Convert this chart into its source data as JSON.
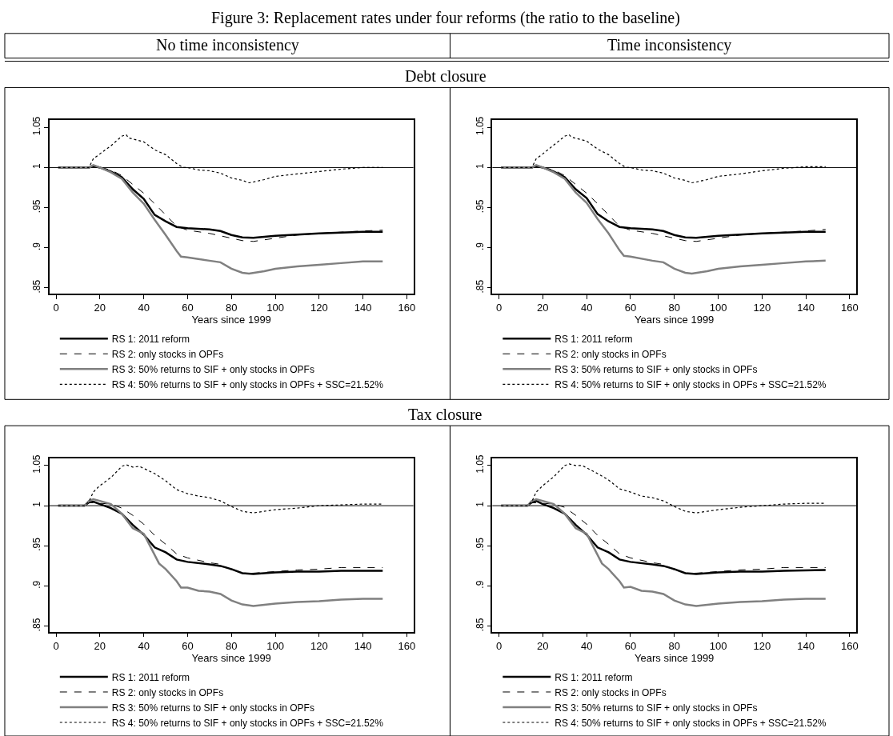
{
  "chart_data": [
    {
      "type": "line",
      "title": "Figure 3: Replacement rates under four reforms (the ratio to the baseline)",
      "subtitle": "No time inconsistency",
      "annotations": [
        "Debt closure"
      ],
      "xlabel": "Years since 1999",
      "xlim": [
        -3,
        163
      ],
      "xticks": [
        0,
        20,
        40,
        60,
        80,
        100,
        120,
        140,
        160
      ],
      "ylim": [
        0.843,
        1.059
      ],
      "yticks": [
        {
          "value": 0.85,
          "label": ".85"
        },
        {
          "value": 0.9,
          "label": ".9"
        },
        {
          "value": 0.95,
          "label": ".95"
        },
        1,
        1.05
      ],
      "grid": false,
      "legend": "bottom",
      "marker": "none",
      "ref_lines": [
        {
          "axis": "y",
          "value": 1,
          "color": "#000000"
        }
      ],
      "series": [
        {
          "name": "RS 1: 2011 reform",
          "color": "#000000",
          "line_style": "solid",
          "x": [
            1,
            15,
            17,
            20,
            25,
            30,
            35,
            40,
            45,
            50,
            55,
            60,
            70,
            75,
            80,
            85,
            90,
            100,
            110,
            120,
            140,
            149
          ],
          "values": [
            1.0,
            1.0,
            1.002,
            1.0,
            0.995,
            0.988,
            0.973,
            0.961,
            0.941,
            0.933,
            0.926,
            0.9245,
            0.923,
            0.921,
            0.916,
            0.913,
            0.9125,
            0.915,
            0.9165,
            0.918,
            0.92,
            0.92
          ]
        },
        {
          "name": "RS 2: only stocks in OPFs",
          "color": "#000000",
          "line_style": "dashed",
          "x": [
            1,
            15,
            17,
            25,
            30,
            35,
            40,
            45,
            50,
            55,
            60,
            70,
            80,
            85,
            90,
            100,
            110,
            120,
            140,
            149
          ],
          "values": [
            1.0,
            1.0,
            1.002,
            0.997,
            0.99,
            0.979,
            0.968,
            0.955,
            0.941,
            0.927,
            0.922,
            0.918,
            0.912,
            0.909,
            0.908,
            0.912,
            0.916,
            0.918,
            0.921,
            0.922
          ]
        },
        {
          "name": "RS 3: 50% returns to SIF + only stocks in OPFs",
          "color": "#808080",
          "line_style": "solid",
          "x": [
            1,
            15,
            17,
            20,
            25,
            30,
            35,
            40,
            45,
            50,
            55,
            57,
            60,
            70,
            75,
            80,
            85,
            88,
            95,
            100,
            110,
            120,
            130,
            140,
            149
          ],
          "values": [
            1.0,
            1.0,
            1.003,
            1.0,
            0.994,
            0.986,
            0.969,
            0.955,
            0.935,
            0.916,
            0.896,
            0.889,
            0.888,
            0.884,
            0.882,
            0.874,
            0.869,
            0.868,
            0.871,
            0.874,
            0.877,
            0.879,
            0.881,
            0.883,
            0.883
          ]
        },
        {
          "name": "RS 4: 50% returns to SIF + only stocks in OPFs + SSC=21.52%",
          "color": "#000000",
          "line_style": "dotted",
          "x": [
            1,
            15,
            17,
            20,
            25,
            30,
            32,
            33,
            40,
            45,
            50,
            55,
            58,
            60,
            65,
            70,
            75,
            80,
            85,
            88,
            90,
            95,
            100,
            110,
            120,
            130,
            140,
            149
          ],
          "values": [
            1.0,
            1.0,
            1.011,
            1.017,
            1.027,
            1.039,
            1.041,
            1.037,
            1.032,
            1.022,
            1.016,
            1.005,
            1.0,
            1.0,
            0.997,
            0.996,
            0.993,
            0.987,
            0.984,
            0.981,
            0.982,
            0.985,
            0.989,
            0.992,
            0.995,
            0.998,
            1.0,
            1.0
          ]
        }
      ]
    },
    {
      "type": "line",
      "subtitle": "Time inconsistency",
      "xlabel": "Years since 1999",
      "xlim": [
        -3,
        163
      ],
      "xticks": [
        0,
        20,
        40,
        60,
        80,
        100,
        120,
        140,
        160
      ],
      "ylim": [
        0.843,
        1.059
      ],
      "yticks": [
        {
          "value": 0.85,
          "label": ".85"
        },
        {
          "value": 0.9,
          "label": ".9"
        },
        {
          "value": 0.95,
          "label": ".95"
        },
        1,
        1.05
      ],
      "grid": false,
      "legend": "bottom",
      "marker": "none",
      "ref_lines": [
        {
          "axis": "y",
          "value": 1,
          "color": "#000000"
        }
      ],
      "series": [
        {
          "name": "RS 1: 2011 reform",
          "color": "#000000",
          "line_style": "solid",
          "x": [
            1,
            15,
            17,
            20,
            25,
            30,
            35,
            40,
            45,
            50,
            55,
            60,
            70,
            75,
            80,
            85,
            90,
            100,
            110,
            120,
            140,
            149
          ],
          "values": [
            1.0,
            1.0,
            1.002,
            1.0,
            0.995,
            0.988,
            0.973,
            0.962,
            0.942,
            0.933,
            0.926,
            0.9245,
            0.923,
            0.921,
            0.916,
            0.913,
            0.9125,
            0.915,
            0.9165,
            0.918,
            0.92,
            0.92
          ]
        },
        {
          "name": "RS 2: only stocks in OPFs",
          "color": "#000000",
          "line_style": "dashed",
          "x": [
            1,
            15,
            17,
            25,
            30,
            35,
            40,
            45,
            50,
            55,
            60,
            70,
            80,
            85,
            90,
            100,
            110,
            120,
            140,
            149
          ],
          "values": [
            1.0,
            1.0,
            1.002,
            0.997,
            0.99,
            0.979,
            0.968,
            0.955,
            0.941,
            0.927,
            0.922,
            0.918,
            0.912,
            0.909,
            0.908,
            0.912,
            0.916,
            0.918,
            0.921,
            0.923
          ]
        },
        {
          "name": "RS 3: 50% returns to SIF + only stocks in OPFs",
          "color": "#808080",
          "line_style": "solid",
          "x": [
            1,
            15,
            17,
            20,
            25,
            30,
            35,
            40,
            45,
            50,
            55,
            57,
            60,
            70,
            75,
            80,
            85,
            88,
            95,
            100,
            110,
            120,
            130,
            140,
            149
          ],
          "values": [
            1.0,
            1.0,
            1.003,
            1.0,
            0.994,
            0.986,
            0.969,
            0.956,
            0.936,
            0.918,
            0.897,
            0.89,
            0.889,
            0.884,
            0.882,
            0.874,
            0.869,
            0.868,
            0.871,
            0.874,
            0.877,
            0.879,
            0.881,
            0.883,
            0.884
          ]
        },
        {
          "name": "RS 4: 50% returns to SIF + only stocks in OPFs + SSC=21.52%",
          "color": "#000000",
          "line_style": "dotted",
          "x": [
            1,
            15,
            17,
            20,
            25,
            30,
            32,
            33,
            40,
            45,
            50,
            55,
            58,
            60,
            65,
            70,
            75,
            80,
            85,
            88,
            90,
            95,
            100,
            110,
            120,
            130,
            140,
            149
          ],
          "values": [
            1.0,
            1.0,
            1.011,
            1.017,
            1.028,
            1.039,
            1.041,
            1.038,
            1.033,
            1.023,
            1.016,
            1.005,
            1.0,
            1.0,
            0.997,
            0.996,
            0.993,
            0.987,
            0.984,
            0.981,
            0.982,
            0.985,
            0.989,
            0.992,
            0.996,
            0.999,
            1.001,
            1.001
          ]
        }
      ]
    },
    {
      "type": "line",
      "annotations": [
        "Tax closure"
      ],
      "xlabel": "Years since 1999",
      "xlim": [
        -3,
        163
      ],
      "xticks": [
        0,
        20,
        40,
        60,
        80,
        100,
        120,
        140,
        160
      ],
      "ylim": [
        0.843,
        1.059
      ],
      "yticks": [
        {
          "value": 0.85,
          "label": ".85"
        },
        {
          "value": 0.9,
          "label": ".9"
        },
        {
          "value": 0.95,
          "label": ".95"
        },
        1,
        1.05
      ],
      "grid": false,
      "legend": "bottom",
      "marker": "none",
      "ref_lines": [
        {
          "axis": "y",
          "value": 1,
          "color": "#000000"
        }
      ],
      "series": [
        {
          "name": "RS 1: 2011 reform",
          "color": "#000000",
          "line_style": "solid",
          "x": [
            1,
            13,
            15,
            17,
            20,
            25,
            30,
            35,
            40,
            45,
            50,
            55,
            60,
            70,
            75,
            80,
            85,
            90,
            100,
            110,
            120,
            130,
            149
          ],
          "values": [
            1.0,
            1.0,
            1.004,
            1.005,
            1.002,
            0.997,
            0.99,
            0.976,
            0.964,
            0.948,
            0.942,
            0.933,
            0.93,
            0.927,
            0.925,
            0.921,
            0.916,
            0.915,
            0.917,
            0.918,
            0.918,
            0.919,
            0.919
          ]
        },
        {
          "name": "RS 2: only stocks in OPFs",
          "color": "#000000",
          "line_style": "dashed",
          "x": [
            1,
            13,
            15,
            20,
            25,
            30,
            35,
            40,
            45,
            50,
            55,
            60,
            70,
            75,
            80,
            85,
            90,
            100,
            110,
            120,
            130,
            149
          ],
          "values": [
            1.0,
            1.0,
            1.004,
            1.003,
            1.002,
            0.997,
            0.988,
            0.977,
            0.963,
            0.952,
            0.94,
            0.935,
            0.929,
            0.927,
            0.92,
            0.916,
            0.916,
            0.918,
            0.92,
            0.921,
            0.923,
            0.923
          ]
        },
        {
          "name": "RS 3: 50% returns to SIF + only stocks in OPFs",
          "color": "#808080",
          "line_style": "solid",
          "x": [
            1,
            13,
            15,
            17,
            20,
            25,
            30,
            35,
            40,
            47,
            50,
            55,
            57,
            60,
            65,
            70,
            75,
            80,
            85,
            90,
            100,
            110,
            120,
            130,
            140,
            149
          ],
          "values": [
            1.0,
            1.0,
            1.006,
            1.008,
            1.006,
            1.002,
            0.99,
            0.972,
            0.965,
            0.928,
            0.921,
            0.906,
            0.898,
            0.898,
            0.894,
            0.893,
            0.89,
            0.882,
            0.877,
            0.875,
            0.878,
            0.88,
            0.881,
            0.883,
            0.884,
            0.884
          ]
        },
        {
          "name": "RS 4: 50% returns to SIF + only stocks in OPFs + SSC=21.52%",
          "color": "#000000",
          "line_style": "dotted",
          "x": [
            1,
            13,
            15,
            17,
            20,
            25,
            30,
            32,
            35,
            38,
            45,
            50,
            55,
            60,
            65,
            70,
            75,
            80,
            85,
            90,
            100,
            110,
            120,
            130,
            140,
            149
          ],
          "values": [
            1.0,
            1.0,
            1.005,
            1.017,
            1.025,
            1.035,
            1.049,
            1.051,
            1.048,
            1.049,
            1.04,
            1.031,
            1.02,
            1.015,
            1.012,
            1.01,
            1.006,
            0.999,
            0.993,
            0.991,
            0.995,
            0.997,
            1.0,
            1.001,
            1.002,
            1.002
          ]
        }
      ]
    },
    {
      "type": "line",
      "xlabel": "Years since 1999",
      "xlim": [
        -3,
        163
      ],
      "xticks": [
        0,
        20,
        40,
        60,
        80,
        100,
        120,
        140,
        160
      ],
      "ylim": [
        0.843,
        1.059
      ],
      "yticks": [
        {
          "value": 0.85,
          "label": ".85"
        },
        {
          "value": 0.9,
          "label": ".9"
        },
        {
          "value": 0.95,
          "label": ".95"
        },
        1,
        1.05
      ],
      "grid": false,
      "legend": "bottom",
      "marker": "none",
      "ref_lines": [
        {
          "axis": "y",
          "value": 1,
          "color": "#000000"
        }
      ],
      "series": [
        {
          "name": "RS 1: 2011 reform",
          "color": "#000000",
          "line_style": "solid",
          "x": [
            1,
            13,
            15,
            17,
            20,
            25,
            30,
            35,
            40,
            45,
            50,
            55,
            60,
            70,
            75,
            80,
            85,
            90,
            100,
            110,
            120,
            130,
            149
          ],
          "values": [
            1.0,
            1.0,
            1.004,
            1.006,
            1.002,
            0.997,
            0.99,
            0.976,
            0.964,
            0.948,
            0.942,
            0.933,
            0.93,
            0.927,
            0.925,
            0.921,
            0.916,
            0.915,
            0.917,
            0.918,
            0.918,
            0.919,
            0.92
          ]
        },
        {
          "name": "RS 2: only stocks in OPFs",
          "color": "#000000",
          "line_style": "dashed",
          "x": [
            1,
            13,
            15,
            20,
            25,
            30,
            35,
            40,
            45,
            50,
            55,
            60,
            70,
            75,
            80,
            85,
            90,
            100,
            110,
            120,
            130,
            149
          ],
          "values": [
            1.0,
            1.0,
            1.004,
            1.003,
            1.002,
            0.998,
            0.988,
            0.977,
            0.963,
            0.952,
            0.94,
            0.935,
            0.929,
            0.927,
            0.92,
            0.916,
            0.916,
            0.918,
            0.92,
            0.921,
            0.923,
            0.923
          ]
        },
        {
          "name": "RS 3: 50% returns to SIF + only stocks in OPFs",
          "color": "#808080",
          "line_style": "solid",
          "x": [
            1,
            13,
            15,
            17,
            20,
            25,
            30,
            35,
            40,
            47,
            50,
            55,
            57,
            60,
            65,
            70,
            75,
            80,
            85,
            90,
            100,
            110,
            120,
            130,
            140,
            149
          ],
          "values": [
            1.0,
            1.0,
            1.006,
            1.008,
            1.006,
            1.002,
            0.99,
            0.972,
            0.965,
            0.928,
            0.921,
            0.906,
            0.898,
            0.899,
            0.894,
            0.893,
            0.89,
            0.882,
            0.877,
            0.875,
            0.878,
            0.88,
            0.881,
            0.883,
            0.884,
            0.884
          ]
        },
        {
          "name": "RS 4: 50% returns to SIF + only stocks in OPFs + SSC=21.52%",
          "color": "#000000",
          "line_style": "dotted",
          "x": [
            1,
            13,
            15,
            17,
            20,
            25,
            30,
            32,
            35,
            38,
            45,
            50,
            55,
            60,
            65,
            70,
            75,
            80,
            85,
            90,
            100,
            110,
            120,
            130,
            140,
            149
          ],
          "values": [
            1.0,
            1.0,
            1.005,
            1.017,
            1.025,
            1.036,
            1.05,
            1.052,
            1.05,
            1.05,
            1.04,
            1.032,
            1.021,
            1.017,
            1.012,
            1.01,
            1.006,
            0.999,
            0.993,
            0.991,
            0.995,
            0.998,
            1.0,
            1.002,
            1.003,
            1.003
          ]
        }
      ]
    }
  ]
}
